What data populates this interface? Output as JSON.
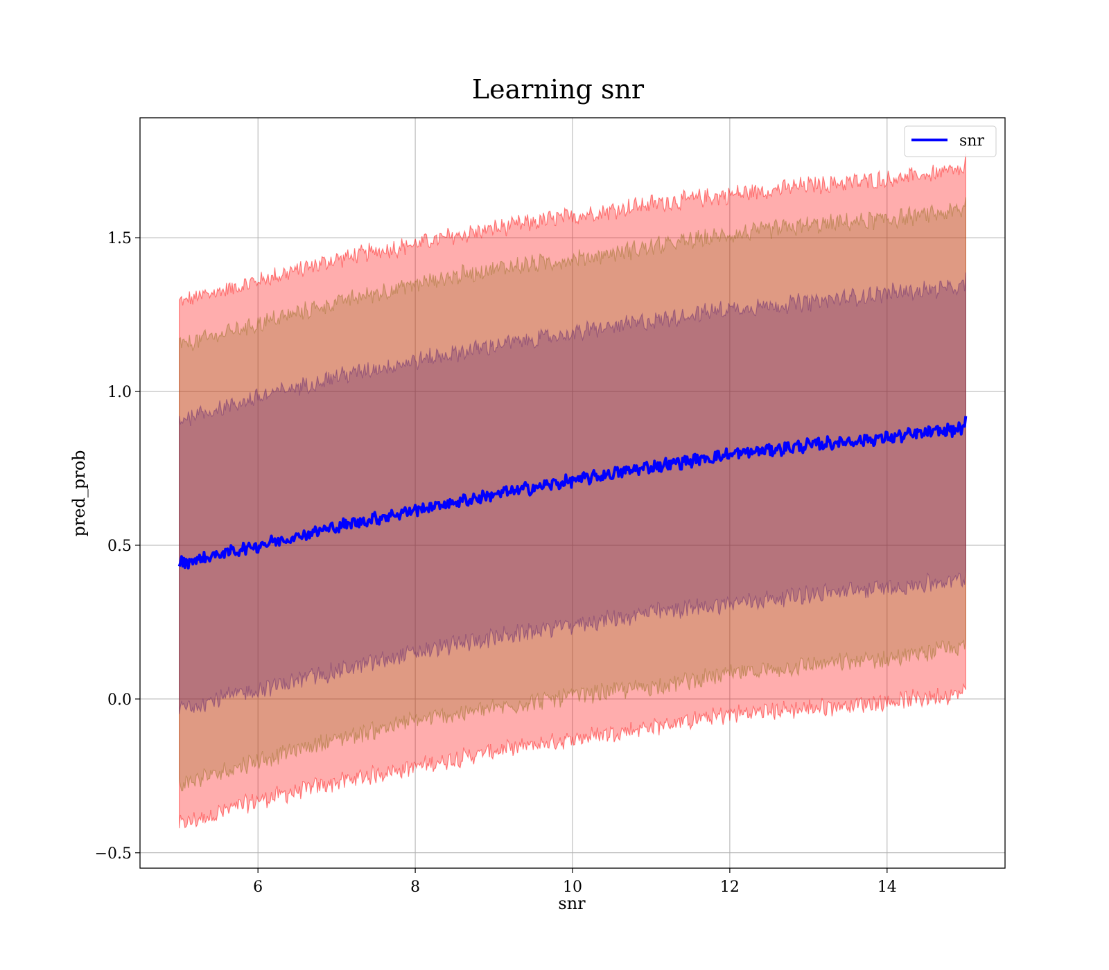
{
  "chart_data": {
    "type": "line",
    "title": "Learning snr",
    "xlabel": "snr",
    "ylabel": "pred_prob",
    "xlim": [
      4.5,
      15.5
    ],
    "ylim": [
      -0.55,
      1.89
    ],
    "xticks": [
      6,
      8,
      10,
      12,
      14
    ],
    "xtick_labels": [
      "6",
      "8",
      "10",
      "12",
      "14"
    ],
    "yticks": [
      -0.5,
      0.0,
      0.5,
      1.0,
      1.5
    ],
    "ytick_labels": [
      "−0.5",
      "0.0",
      "0.5",
      "1.0",
      "1.5"
    ],
    "grid": true,
    "legend": {
      "position": "top-right",
      "entries": [
        "snr"
      ]
    },
    "line_color": "#0000ff",
    "series": [
      {
        "name": "snr",
        "x": [
          5,
          6,
          7,
          8,
          9,
          10,
          11,
          12,
          13,
          14,
          15
        ],
        "values": [
          0.44,
          0.5,
          0.56,
          0.615,
          0.665,
          0.71,
          0.755,
          0.795,
          0.825,
          0.85,
          0.88
        ]
      }
    ],
    "bands": [
      {
        "color": "#ff0000",
        "alpha": 0.32,
        "edge_alpha": 0.45,
        "lower": [
          -0.41,
          -0.33,
          -0.27,
          -0.22,
          -0.17,
          -0.13,
          -0.09,
          -0.05,
          -0.03,
          -0.01,
          0.02
        ],
        "upper": [
          1.29,
          1.36,
          1.43,
          1.48,
          1.53,
          1.57,
          1.61,
          1.64,
          1.67,
          1.69,
          1.72
        ]
      },
      {
        "color": "#8b6914",
        "alpha": 0.28,
        "edge_alpha": 0.4,
        "lower": [
          -0.28,
          -0.2,
          -0.13,
          -0.07,
          -0.03,
          0.01,
          0.04,
          0.08,
          0.11,
          0.13,
          0.17
        ],
        "upper": [
          1.15,
          1.22,
          1.29,
          1.35,
          1.4,
          1.43,
          1.47,
          1.51,
          1.54,
          1.56,
          1.59
        ]
      },
      {
        "color": "#5a1e6e",
        "alpha": 0.3,
        "edge_alpha": 0.4,
        "lower": [
          -0.03,
          0.03,
          0.09,
          0.15,
          0.2,
          0.24,
          0.28,
          0.31,
          0.34,
          0.36,
          0.39
        ],
        "upper": [
          0.91,
          0.98,
          1.05,
          1.1,
          1.15,
          1.19,
          1.23,
          1.27,
          1.29,
          1.32,
          1.34
        ]
      }
    ]
  }
}
